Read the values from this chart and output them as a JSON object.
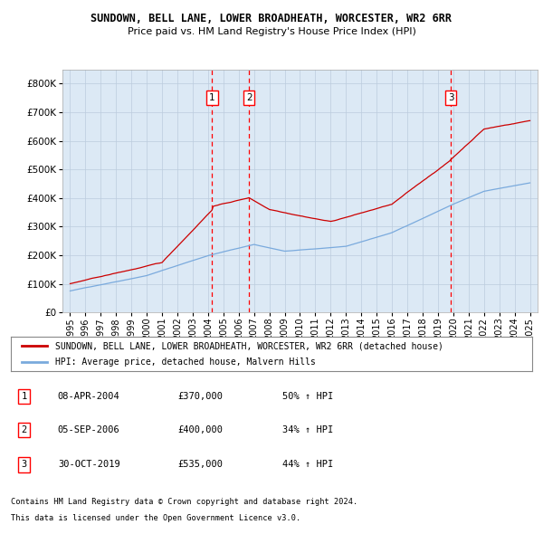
{
  "title": "SUNDOWN, BELL LANE, LOWER BROADHEATH, WORCESTER, WR2 6RR",
  "subtitle": "Price paid vs. HM Land Registry's House Price Index (HPI)",
  "legend_line1": "SUNDOWN, BELL LANE, LOWER BROADHEATH, WORCESTER, WR2 6RR (detached house)",
  "legend_line2": "HPI: Average price, detached house, Malvern Hills",
  "footer1": "Contains HM Land Registry data © Crown copyright and database right 2024.",
  "footer2": "This data is licensed under the Open Government Licence v3.0.",
  "transactions": [
    {
      "num": 1,
      "date": "08-APR-2004",
      "price": 370000,
      "pct": "50%",
      "dir": "↑",
      "x_year": 2004.27
    },
    {
      "num": 2,
      "date": "05-SEP-2006",
      "price": 400000,
      "pct": "34%",
      "dir": "↑",
      "x_year": 2006.67
    },
    {
      "num": 3,
      "date": "30-OCT-2019",
      "price": 535000,
      "pct": "44%",
      "dir": "↑",
      "x_year": 2019.83
    }
  ],
  "ylim": [
    0,
    850000
  ],
  "xlim": [
    1994.5,
    2025.5
  ],
  "plot_bg": "#dce9f5",
  "red_color": "#cc0000",
  "blue_color": "#7aaadd",
  "grid_color": "#bbccdd"
}
